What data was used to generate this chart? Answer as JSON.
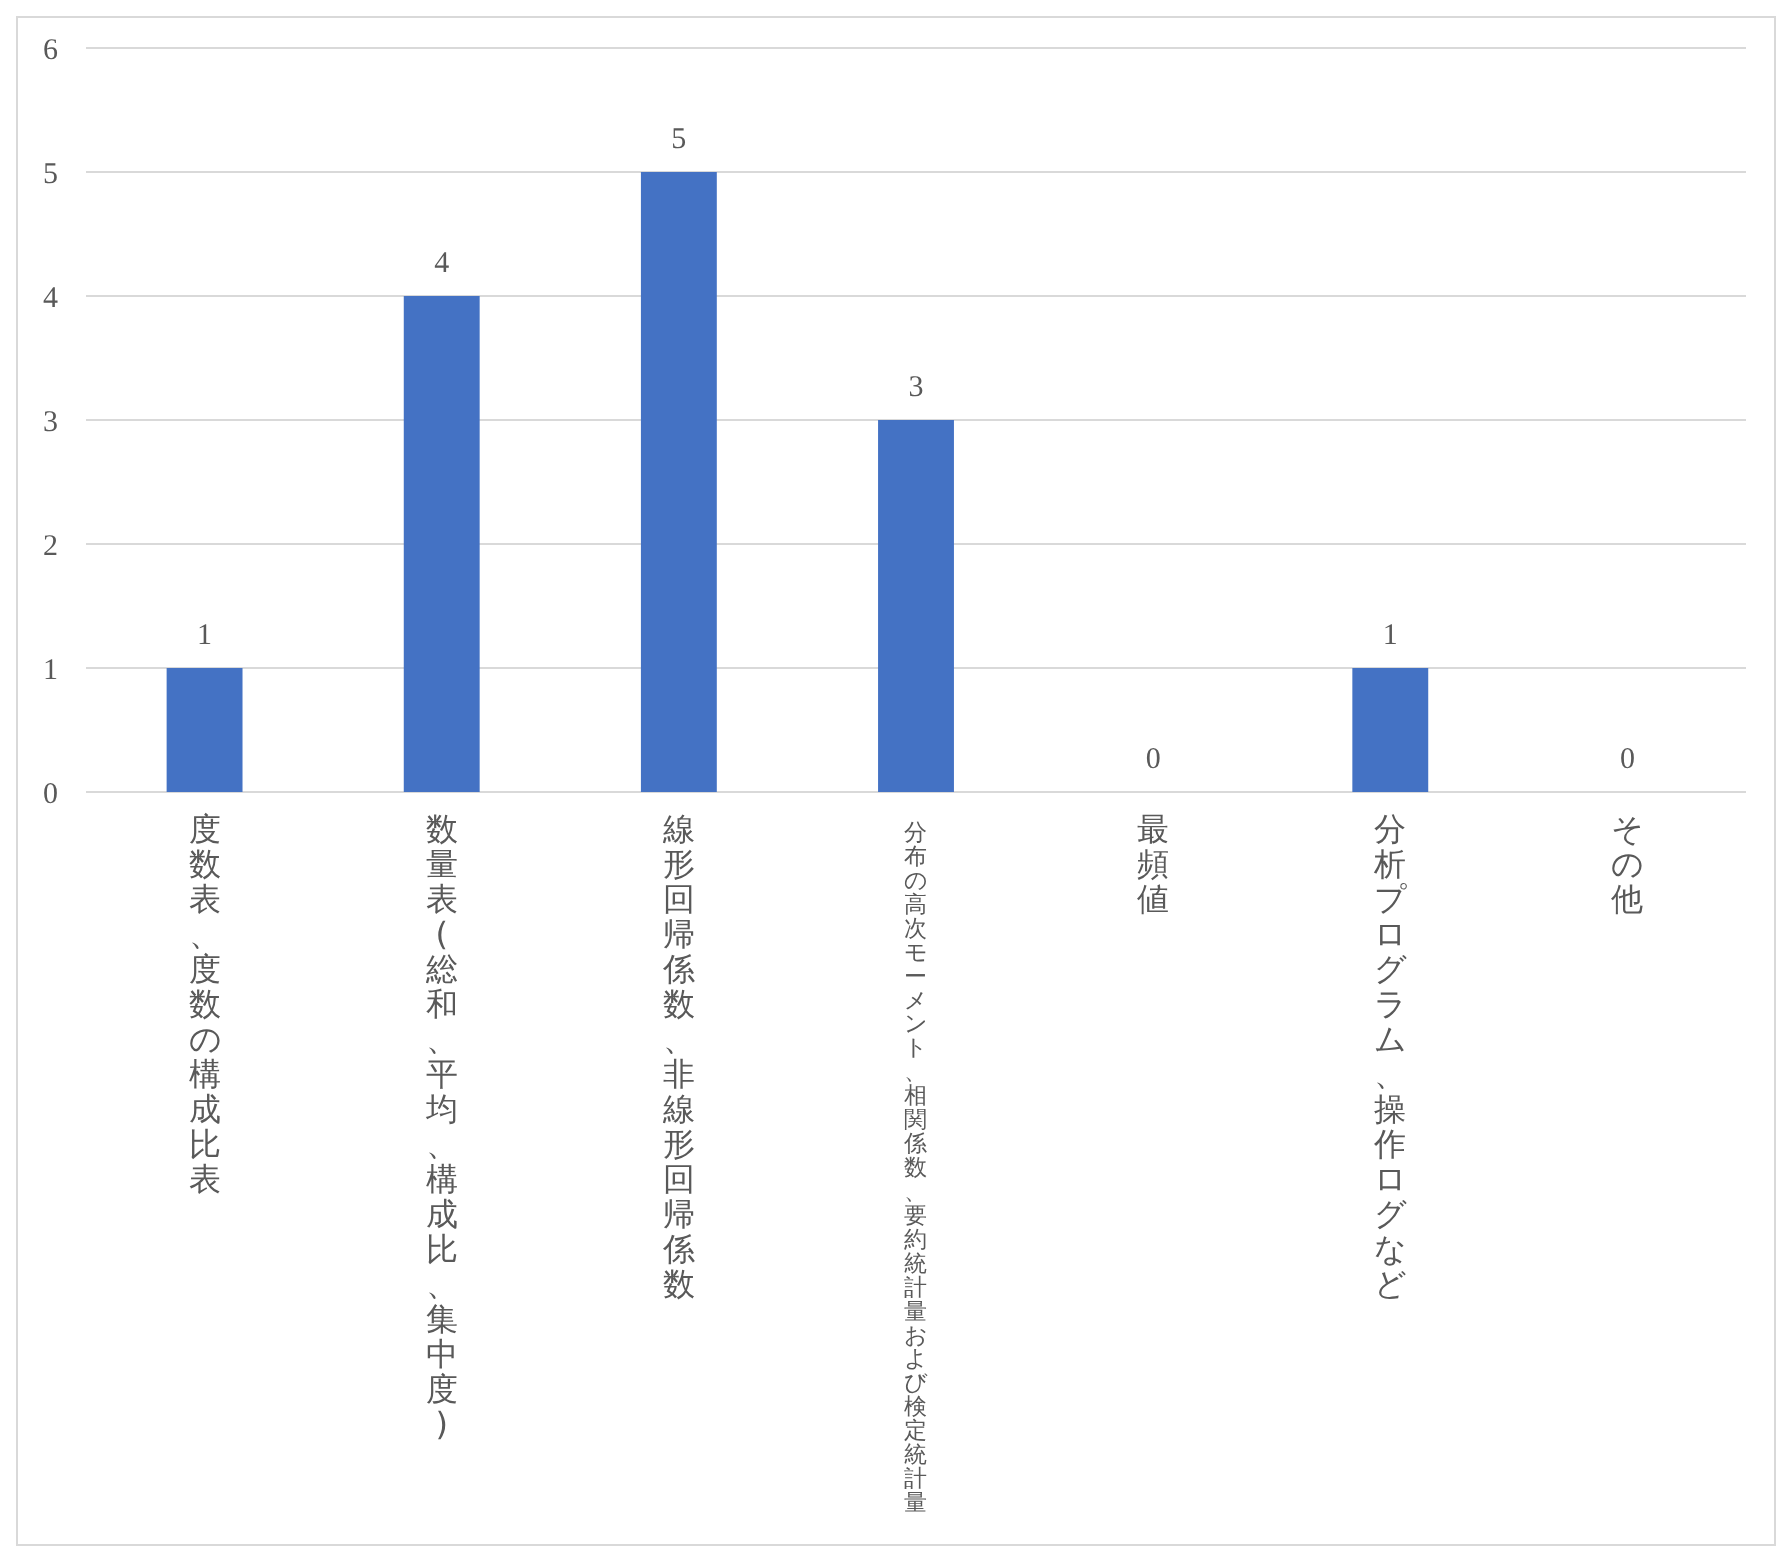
{
  "chart_data": {
    "type": "bar",
    "categories": [
      "度数表、度数の構成比表",
      "数量表(総和、平均、構成比、集中度)",
      "線形回帰係数、非線形回帰係数",
      "分布の高次モーメント、相関係数、要約統計量および検定統計量",
      "最頻値",
      "分析プログラム、操作ログなど",
      "その他"
    ],
    "values": [
      1,
      4,
      5,
      3,
      0,
      1,
      0
    ],
    "color": "#4472c4",
    "ylim": [
      0,
      6
    ],
    "yticks": [
      0,
      1,
      2,
      3,
      4,
      5,
      6
    ],
    "grid": "y",
    "data_labels": true
  }
}
